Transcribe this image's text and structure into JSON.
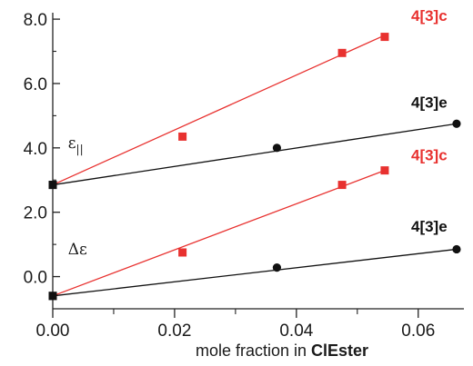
{
  "chart_data": {
    "type": "scatter",
    "title": "",
    "xlabel_prefix": "mole fraction in ",
    "xlabel_bold": "ClEster",
    "ylabel": "",
    "xlim": [
      0,
      0.0675
    ],
    "ylim": [
      -1.0,
      8.2
    ],
    "x_ticks": [
      0.0,
      0.02,
      0.04,
      0.06
    ],
    "x_tick_labels": [
      "0.00",
      "0.02",
      "0.04",
      "0.06"
    ],
    "x_minor_ticks": [
      0.01,
      0.03,
      0.05
    ],
    "y_ticks": [
      0,
      2,
      4,
      6,
      8
    ],
    "y_tick_labels": [
      "0.0",
      "2.0",
      "4.0",
      "6.0",
      "8.0"
    ],
    "y_minor_ticks": [
      1,
      3,
      5,
      7
    ],
    "grid": false,
    "legend": "none",
    "series": [
      {
        "name": "4[3]c",
        "group": "ε∥",
        "color": "#e8312f",
        "marker": "square",
        "x": [
          0.0,
          0.0213,
          0.0475,
          0.0545
        ],
        "y": [
          2.85,
          4.35,
          6.95,
          7.45
        ],
        "fit": [
          [
            0.0,
            2.85
          ],
          [
            0.0545,
            7.5
          ]
        ]
      },
      {
        "name": "4[3]e",
        "group": "ε∥",
        "color": "#111111",
        "marker": "circle",
        "x": [
          0.0,
          0.0368,
          0.0663
        ],
        "y": [
          2.85,
          4.0,
          4.75
        ],
        "fit": [
          [
            0.0,
            2.85
          ],
          [
            0.0663,
            4.75
          ]
        ]
      },
      {
        "name": "4[3]c",
        "group": "Δε",
        "color": "#e8312f",
        "marker": "square",
        "x": [
          0.0,
          0.0213,
          0.0475,
          0.0545
        ],
        "y": [
          -0.6,
          0.75,
          2.85,
          3.3
        ],
        "fit": [
          [
            0.0,
            -0.6
          ],
          [
            0.0545,
            3.3
          ]
        ]
      },
      {
        "name": "4[3]e",
        "group": "Δε",
        "color": "#111111",
        "marker": "circle",
        "x": [
          0.0,
          0.0368,
          0.0663
        ],
        "y": [
          -0.6,
          0.28,
          0.85
        ],
        "fit": [
          [
            0.0,
            -0.6
          ],
          [
            0.0663,
            0.85
          ]
        ]
      }
    ],
    "annotations": [
      {
        "text_main": "ε",
        "text_sub": "||",
        "x": 0.0025,
        "y": 4.0
      },
      {
        "text_main": "Δε",
        "text_sub": "",
        "x": 0.0025,
        "y": 0.7
      }
    ],
    "series_labels": [
      {
        "text": "4[3]c",
        "color": "#e8312f",
        "x": 0.0618,
        "y": 7.95
      },
      {
        "text": "4[3]e",
        "color": "#111111",
        "x": 0.0618,
        "y": 5.25
      },
      {
        "text": "4[3]c",
        "color": "#e8312f",
        "x": 0.0618,
        "y": 3.62
      },
      {
        "text": "4[3]e",
        "color": "#111111",
        "x": 0.0618,
        "y": 1.4
      }
    ]
  }
}
